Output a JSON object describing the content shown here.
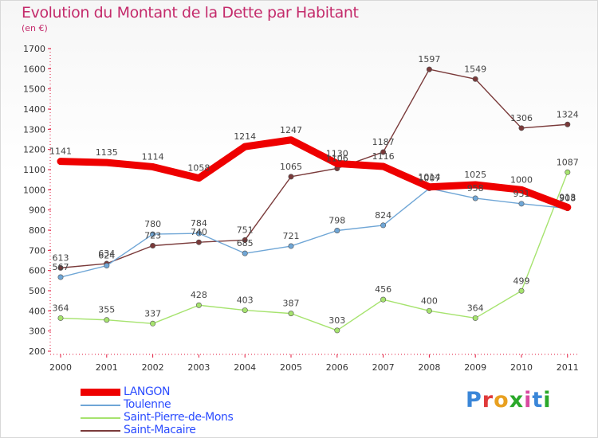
{
  "title": "Evolution du Montant de la Dette par Habitant",
  "subtitle": "(en €)",
  "brand": "Proxiti",
  "colors": {
    "title": "#c42b6b",
    "legend_text": "#2c4dff",
    "axis": "#e0163a",
    "brand_letters": [
      "#3a86d8",
      "#e03a3a",
      "#e8a020",
      "#2aa82a",
      "#d84aa0",
      "#3a86d8",
      "#2aa82a"
    ]
  },
  "chart_data": {
    "type": "line",
    "categories": [
      "2000",
      "2001",
      "2002",
      "2003",
      "2004",
      "2005",
      "2006",
      "2007",
      "2008",
      "2009",
      "2010",
      "2011"
    ],
    "ylim": [
      200,
      1700
    ],
    "yticks": [
      200,
      300,
      400,
      500,
      600,
      700,
      800,
      900,
      1000,
      1100,
      1200,
      1300,
      1400,
      1500,
      1600,
      1700
    ],
    "grid": false,
    "legend_position": "bottom-left",
    "series": [
      {
        "name": "LANGON",
        "color": "#ee0000",
        "values": [
          1141,
          1135,
          1114,
          1058,
          1214,
          1247,
          1130,
          1116,
          1014,
          1025,
          1000,
          913
        ]
      },
      {
        "name": "Toulenne",
        "color": "#6fa6d6",
        "values": [
          567,
          624,
          780,
          784,
          685,
          721,
          798,
          824,
          1007,
          958,
          931,
          908
        ]
      },
      {
        "name": "Saint-Pierre-de-Mons",
        "color": "#a6e36e",
        "values": [
          364,
          355,
          337,
          428,
          403,
          387,
          303,
          456,
          400,
          364,
          499,
          1087
        ]
      },
      {
        "name": "Saint-Macaire",
        "color": "#7a3a3a",
        "values": [
          613,
          634,
          723,
          740,
          751,
          1065,
          1106,
          1187,
          1597,
          1549,
          1306,
          1324
        ]
      }
    ]
  }
}
